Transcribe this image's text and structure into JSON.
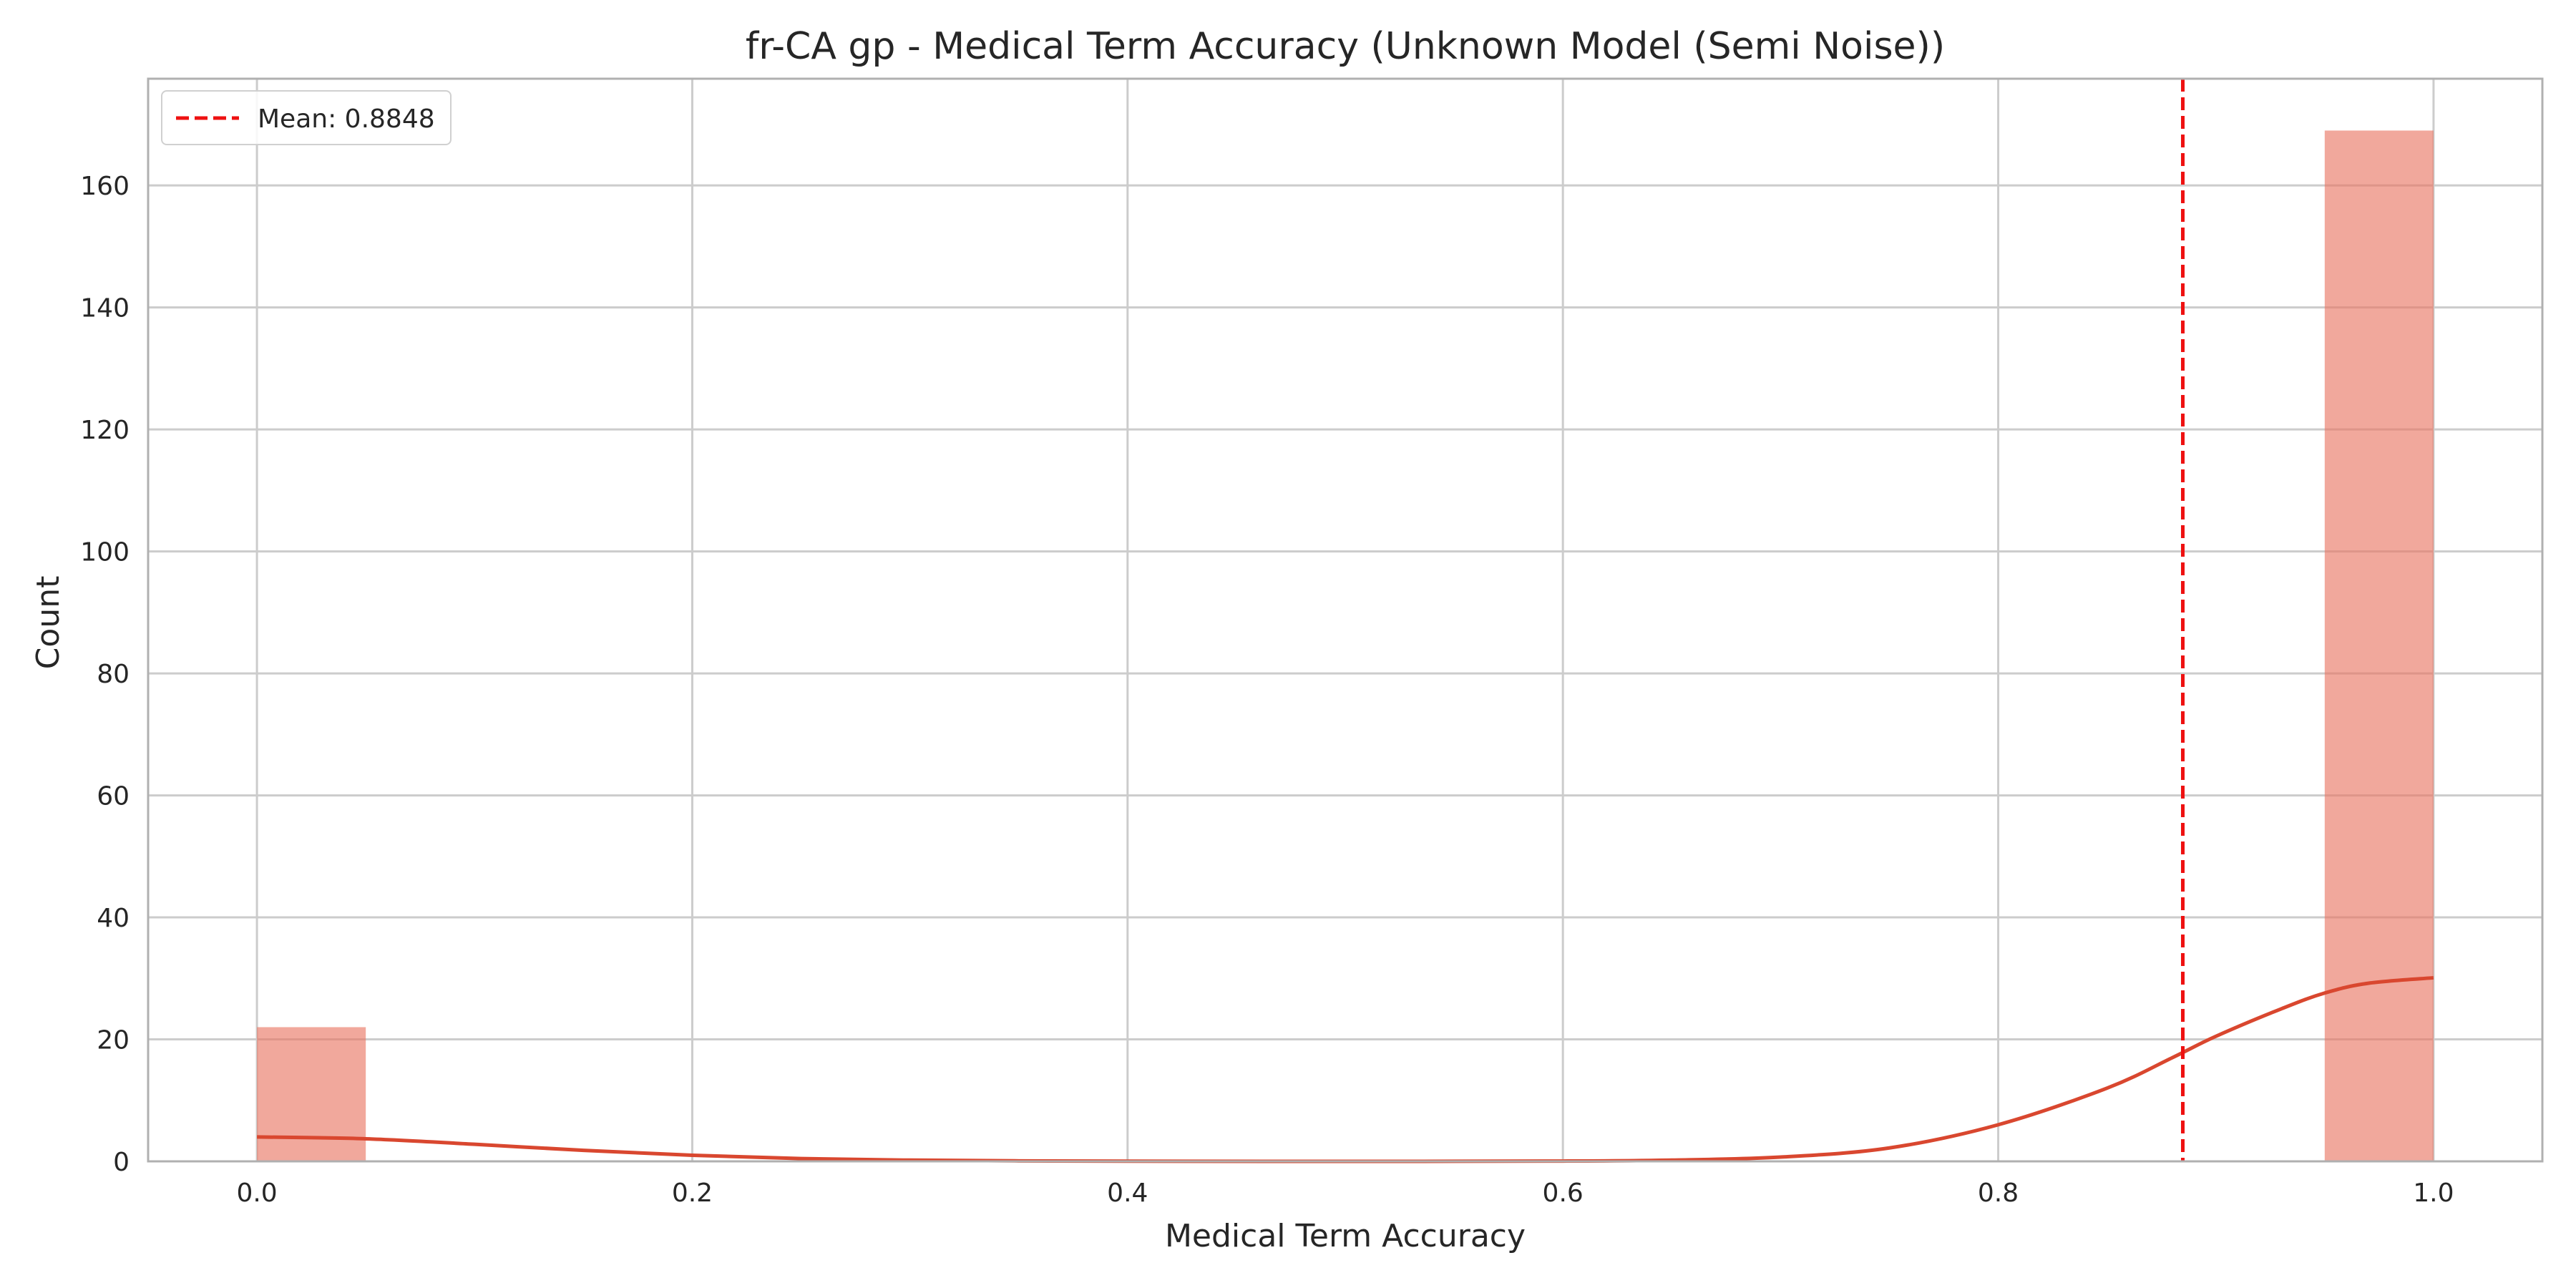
{
  "chart_data": {
    "type": "bar",
    "title": "fr-CA gp - Medical Term Accuracy (Unknown Model (Semi Noise))",
    "xlabel": "Medical Term Accuracy",
    "ylabel": "Count",
    "xlim": [
      -0.05,
      1.05
    ],
    "ylim": [
      0,
      177.5
    ],
    "x_ticks": [
      0.0,
      0.2,
      0.4,
      0.6,
      0.8,
      1.0
    ],
    "x_tick_labels": [
      "0.0",
      "0.2",
      "0.4",
      "0.6",
      "0.8",
      "1.0"
    ],
    "y_ticks": [
      0,
      20,
      40,
      60,
      80,
      100,
      120,
      140,
      160
    ],
    "y_tick_labels": [
      "0",
      "20",
      "40",
      "60",
      "80",
      "100",
      "120",
      "140",
      "160"
    ],
    "grid": true,
    "bins": [
      {
        "start": 0.0,
        "end": 0.05,
        "count": 22
      },
      {
        "start": 0.95,
        "end": 1.0,
        "count": 169
      }
    ],
    "kde": [
      [
        0.0,
        4.0
      ],
      [
        0.05,
        3.7
      ],
      [
        0.1,
        2.8
      ],
      [
        0.15,
        1.8
      ],
      [
        0.2,
        1.0
      ],
      [
        0.25,
        0.45
      ],
      [
        0.3,
        0.2
      ],
      [
        0.35,
        0.08
      ],
      [
        0.4,
        0.03
      ],
      [
        0.5,
        0.0
      ],
      [
        0.6,
        0.05
      ],
      [
        0.65,
        0.2
      ],
      [
        0.7,
        0.7
      ],
      [
        0.75,
        2.2
      ],
      [
        0.8,
        6.0
      ],
      [
        0.85,
        12.0
      ],
      [
        0.88,
        17.0
      ],
      [
        0.9,
        20.5
      ],
      [
        0.93,
        25.0
      ],
      [
        0.95,
        27.6
      ],
      [
        0.97,
        29.2
      ],
      [
        1.0,
        30.1
      ]
    ],
    "mean": 0.8848,
    "legend": {
      "position": "top-left",
      "entries": [
        {
          "label": "Mean: 0.8848"
        }
      ]
    },
    "colors": {
      "bar": "#e8735f",
      "kde": "#d9472f",
      "mean": "#ee1111",
      "grid": "#cccccc",
      "axes": "#b0b0b0"
    }
  }
}
